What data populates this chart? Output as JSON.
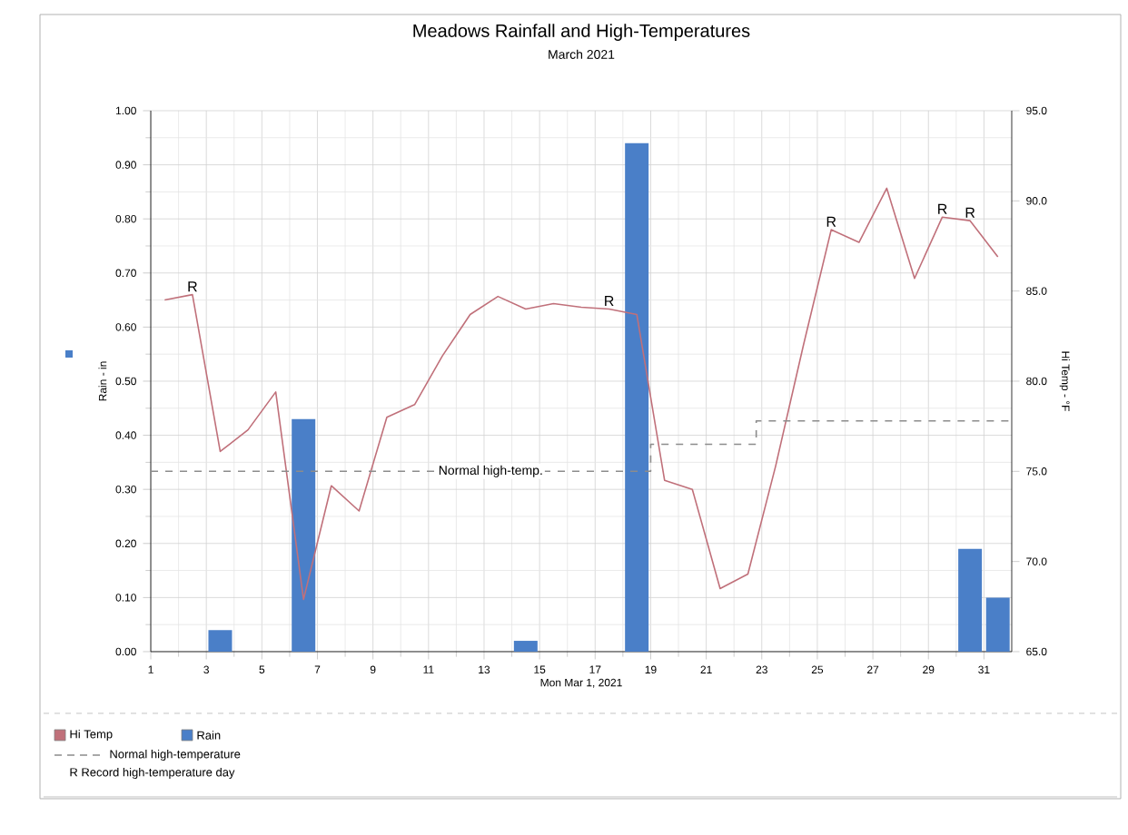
{
  "chart_data": {
    "type": "bar",
    "title": "Meadows Rainfall and High-Temperatures",
    "subtitle": "March 2021",
    "xlabel": "Mon Mar 1, 2021",
    "ylabel": "Rain - in",
    "y2label": "Hi Temp - °F",
    "xlim": [
      1,
      32
    ],
    "xticks": [
      1,
      3,
      5,
      7,
      9,
      11,
      13,
      15,
      17,
      19,
      21,
      23,
      25,
      27,
      29,
      31
    ],
    "ylim": [
      0,
      1
    ],
    "yticks": [
      {
        "value": 0,
        "label": "0.00"
      },
      {
        "value": 0.1,
        "label": "0.10"
      },
      {
        "value": 0.2,
        "label": "0.20"
      },
      {
        "value": 0.3,
        "label": "0.30"
      },
      {
        "value": 0.4,
        "label": "0.40"
      },
      {
        "value": 0.5,
        "label": "0.50"
      },
      {
        "value": 0.6,
        "label": "0.60"
      },
      {
        "value": 0.7,
        "label": "0.70"
      },
      {
        "value": 0.8,
        "label": "0.80"
      },
      {
        "value": 0.9,
        "label": "0.90"
      },
      {
        "value": 1,
        "label": "1.00"
      }
    ],
    "y2lim": [
      65,
      95
    ],
    "y2ticks": [
      {
        "value": 65,
        "label": "65.0"
      },
      {
        "value": 70,
        "label": "70.0"
      },
      {
        "value": 75,
        "label": "75.0"
      },
      {
        "value": 80,
        "label": "80.0"
      },
      {
        "value": 85,
        "label": "85.0"
      },
      {
        "value": 90,
        "label": "90.0"
      },
      {
        "value": 95,
        "label": "95.0"
      }
    ],
    "grid": true,
    "legend": "bottom",
    "series": [
      {
        "name": "Hi Temp",
        "type": "line",
        "axis": "y2",
        "color": "#c0707a",
        "x": [
          1.5,
          2.5,
          3.5,
          4.5,
          5.5,
          6.5,
          7.5,
          8.5,
          9.5,
          10.5,
          11.5,
          12.5,
          13.5,
          14.5,
          15.5,
          16.5,
          17.5,
          18.5,
          19.5,
          20.5,
          21.5,
          22.5,
          23.5,
          24.5,
          25.5,
          26.5,
          27.5,
          28.5,
          29.5,
          30.5,
          31.5
        ],
        "values": [
          84.5,
          84.8,
          76.1,
          77.3,
          79.4,
          67.9,
          74.2,
          72.8,
          78.0,
          78.7,
          81.4,
          83.7,
          84.7,
          84.0,
          84.3,
          84.1,
          84.0,
          83.7,
          74.5,
          74.0,
          68.5,
          69.3,
          75.3,
          82.0,
          88.4,
          87.7,
          90.7,
          85.7,
          89.1,
          88.9,
          86.9
        ],
        "value_labels": [
          null,
          "R",
          null,
          null,
          null,
          null,
          null,
          null,
          null,
          null,
          null,
          null,
          null,
          null,
          null,
          null,
          "R",
          null,
          null,
          null,
          null,
          null,
          null,
          null,
          "R",
          null,
          null,
          null,
          "R",
          "R",
          null
        ]
      },
      {
        "name": "Rain",
        "axis": "y",
        "color": "#4a7fc8",
        "x": [
          3.5,
          6.5,
          14.5,
          18.5,
          30.5,
          31.5
        ],
        "values": [
          0.04,
          0.43,
          0.02,
          0.94,
          0.19,
          0.1
        ]
      },
      {
        "name": "Normal high-temperature",
        "type": "line",
        "axis": "y2",
        "line_style": "dashed",
        "color": "#8c8c8c",
        "x": [
          1,
          19,
          19,
          22.8,
          22.8,
          32
        ],
        "values": [
          75.0,
          75.0,
          76.5,
          76.5,
          77.8,
          77.8
        ]
      }
    ],
    "annotations": [
      "Normal high-temp.",
      "R Record high-temperature day"
    ]
  }
}
